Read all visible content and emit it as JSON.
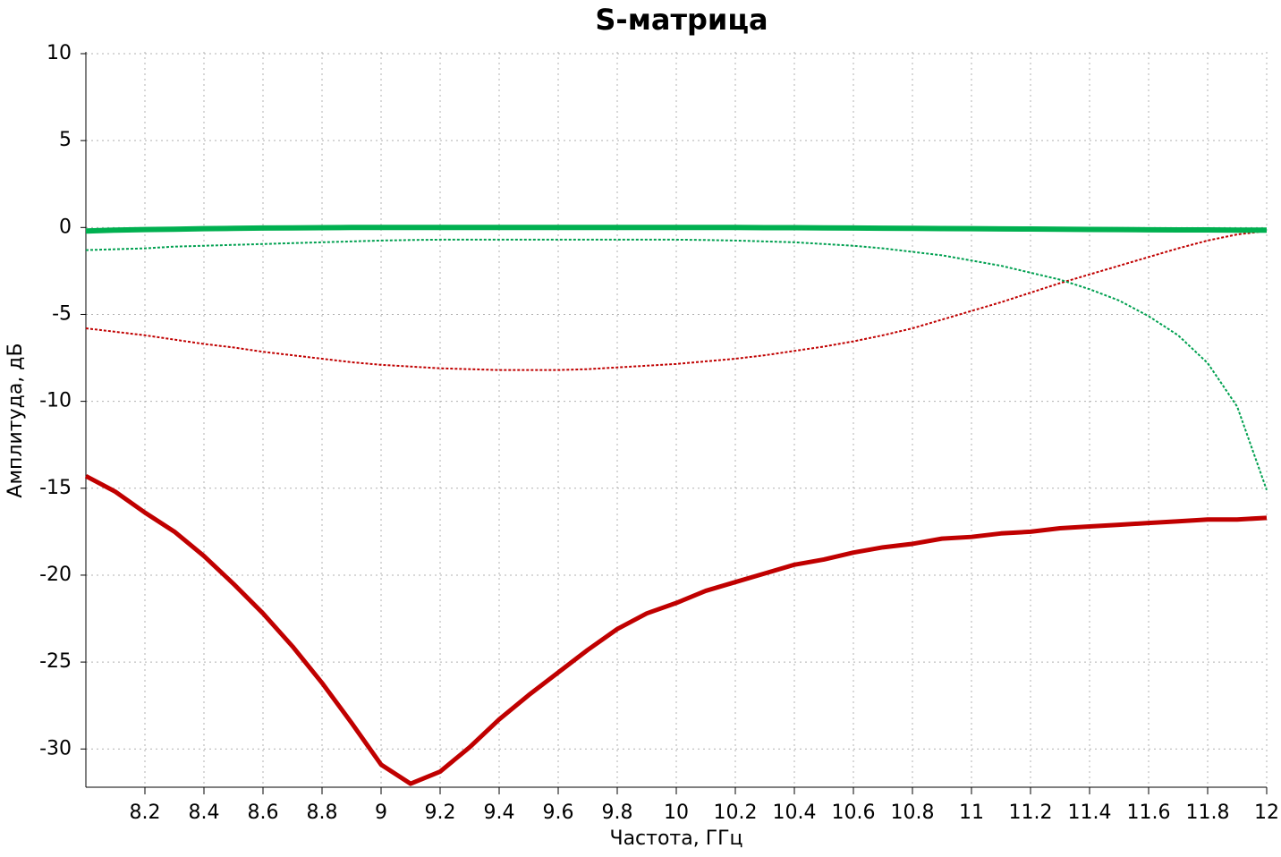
{
  "chart_data": {
    "type": "line",
    "title": "S-матрица",
    "x_label": "Частота, ГГц",
    "y_label": "Амплитуда, дБ",
    "x": [
      8.0,
      8.1,
      8.2,
      8.3,
      8.4,
      8.5,
      8.6,
      8.7,
      8.8,
      8.9,
      9.0,
      9.1,
      9.2,
      9.3,
      9.4,
      9.5,
      9.6,
      9.7,
      9.8,
      9.9,
      10.0,
      10.1,
      10.2,
      10.3,
      10.4,
      10.5,
      10.6,
      10.7,
      10.8,
      10.9,
      11.0,
      11.1,
      11.2,
      11.3,
      11.4,
      11.5,
      11.6,
      11.7,
      11.8,
      11.9,
      12.0
    ],
    "series": [
      {
        "color": "#c00000",
        "width": 5,
        "dashed": false,
        "values": [
          -14.3,
          -15.2,
          -16.4,
          -17.5,
          -18.9,
          -20.5,
          -22.2,
          -24.1,
          -26.2,
          -28.5,
          -30.9,
          -32.0,
          -31.3,
          -29.9,
          -28.3,
          -26.9,
          -25.6,
          -24.3,
          -23.1,
          -22.2,
          -21.6,
          -20.9,
          -20.4,
          -19.9,
          -19.4,
          -19.1,
          -18.7,
          -18.4,
          -18.2,
          -17.9,
          -17.8,
          -17.6,
          -17.5,
          -17.3,
          -17.2,
          -17.1,
          -17.0,
          -16.9,
          -16.8,
          -16.8,
          -16.7
        ]
      },
      {
        "color": "#c00000",
        "width": 2,
        "dashed": true,
        "values": [
          -5.8,
          -6.0,
          -6.2,
          -6.45,
          -6.7,
          -6.9,
          -7.15,
          -7.35,
          -7.55,
          -7.75,
          -7.9,
          -8.0,
          -8.1,
          -8.15,
          -8.2,
          -8.2,
          -8.2,
          -8.15,
          -8.05,
          -7.95,
          -7.85,
          -7.7,
          -7.55,
          -7.35,
          -7.1,
          -6.85,
          -6.55,
          -6.2,
          -5.8,
          -5.3,
          -4.8,
          -4.3,
          -3.75,
          -3.2,
          -2.7,
          -2.2,
          -1.7,
          -1.2,
          -0.75,
          -0.4,
          -0.2
        ]
      },
      {
        "color": "#00b050",
        "width": 6,
        "dashed": false,
        "values": [
          -0.2,
          -0.15,
          -0.12,
          -0.1,
          -0.07,
          -0.05,
          -0.03,
          -0.02,
          -0.01,
          0,
          0,
          0,
          0,
          0,
          0,
          0,
          0,
          0,
          0,
          0,
          0,
          0,
          0,
          -0.01,
          -0.01,
          -0.02,
          -0.03,
          -0.04,
          -0.05,
          -0.06,
          -0.07,
          -0.08,
          -0.09,
          -0.1,
          -0.11,
          -0.12,
          -0.13,
          -0.14,
          -0.14,
          -0.15,
          -0.15
        ]
      },
      {
        "color": "#00a050",
        "width": 2,
        "dashed": true,
        "values": [
          -1.3,
          -1.25,
          -1.2,
          -1.1,
          -1.05,
          -1.0,
          -0.95,
          -0.9,
          -0.85,
          -0.8,
          -0.75,
          -0.72,
          -0.7,
          -0.7,
          -0.7,
          -0.7,
          -0.7,
          -0.7,
          -0.7,
          -0.7,
          -0.7,
          -0.72,
          -0.75,
          -0.8,
          -0.85,
          -0.95,
          -1.05,
          -1.2,
          -1.4,
          -1.6,
          -1.9,
          -2.2,
          -2.6,
          -3.0,
          -3.55,
          -4.2,
          -5.1,
          -6.2,
          -7.8,
          -10.3,
          -15.1
        ]
      }
    ],
    "xlim": [
      8,
      12
    ],
    "xticks": [
      8.2,
      8.4,
      8.6,
      8.8,
      9,
      9.2,
      9.4,
      9.6,
      9.8,
      10,
      10.2,
      10.4,
      10.6,
      10.8,
      11,
      11.2,
      11.4,
      11.6,
      11.8,
      12
    ],
    "ylim": [
      -32.2,
      10
    ],
    "yticks": [
      10,
      5,
      0,
      -5,
      -10,
      -15,
      -20,
      -25,
      -30
    ],
    "grid": true
  }
}
